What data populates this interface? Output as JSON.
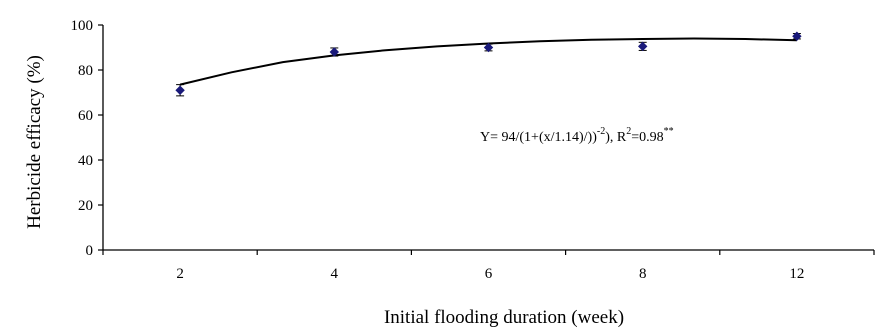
{
  "chart_data": {
    "type": "scatter",
    "title": "",
    "xlabel": "Initial flooding duration (week)",
    "ylabel": "Herbicide efficacy (%)",
    "categories": [
      "2",
      "4",
      "6",
      "8",
      "12"
    ],
    "ylim": [
      0,
      100
    ],
    "yticks": [
      0,
      20,
      40,
      60,
      80,
      100
    ],
    "grid": false,
    "legend": "none",
    "series": [
      {
        "values": [
          71,
          88,
          90,
          90.5,
          95
        ],
        "error": [
          2.5,
          1.8,
          1.5,
          1.8,
          1.2
        ],
        "marker": "diamond",
        "color": "#1a1a7a"
      }
    ],
    "fit_curve": {
      "color": "#000000",
      "y": [
        73.5,
        79,
        83.5,
        86.5,
        88.8,
        90.5,
        91.8,
        92.8,
        93.4,
        93.8,
        94,
        93.8,
        93.2
      ]
    },
    "annotation": {
      "equation_main": "Y= 94/(1+(x/1.14)/))",
      "equation_exp": "-2",
      "equation_r_prefix": "),  R",
      "equation_r_sup": "2",
      "equation_r_value": "=0.98",
      "equation_significance": "**"
    }
  }
}
